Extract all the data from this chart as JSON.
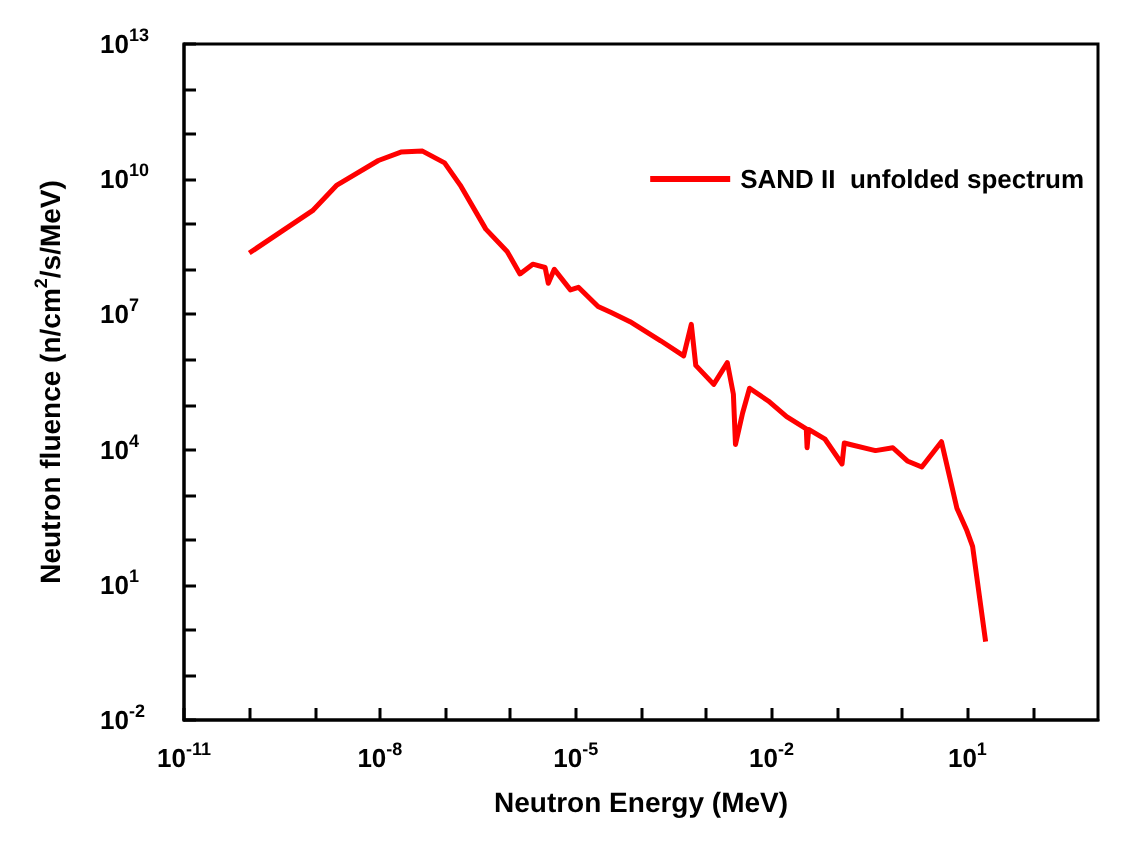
{
  "chart_data": {
    "type": "line",
    "xlabel": "Neutron Energy (MeV)",
    "ylabel": "Neutron fluence (n/cm$^{2}$/s/MeV)",
    "log": "xy",
    "grid": false,
    "legend": "top right",
    "marker": "none",
    "line_style": "solid",
    "xlim": [
      1e-11,
      1000.0
    ],
    "xticks": [
      {
        "value": 1e-11,
        "label": "10$^{-11}$"
      },
      {
        "value": 1e-10,
        "label": null
      },
      {
        "value": 1e-09,
        "label": null
      },
      {
        "value": 1e-08,
        "label": "10$^{-8}$"
      },
      {
        "value": 1e-07,
        "label": null
      },
      {
        "value": 1e-06,
        "label": null
      },
      {
        "value": 1e-05,
        "label": "10$^{-5}$"
      },
      {
        "value": 0.0001,
        "label": null
      },
      {
        "value": 0.001,
        "label": null
      },
      {
        "value": 0.01,
        "label": "10$^{-2}$"
      },
      {
        "value": 0.1,
        "label": null
      },
      {
        "value": 1,
        "label": null
      },
      {
        "value": 10,
        "label": "10$^{1}$"
      },
      {
        "value": 100,
        "label": null
      }
    ],
    "ylim": [
      0.01,
      10000000000000.0
    ],
    "yticks": [
      {
        "value": 0.01,
        "label": "10$^{-2}$"
      },
      {
        "value": 0.1,
        "label": null
      },
      {
        "value": 1,
        "label": null
      },
      {
        "value": 10,
        "label": "10$^{1}$"
      },
      {
        "value": 100,
        "label": null
      },
      {
        "value": 1000.0,
        "label": null
      },
      {
        "value": 10000.0,
        "label": "10$^{4}$"
      },
      {
        "value": 100000.0,
        "label": null
      },
      {
        "value": 1000000.0,
        "label": null
      },
      {
        "value": 10000000.0,
        "label": "10$^{7}$"
      },
      {
        "value": 100000000.0,
        "label": null
      },
      {
        "value": 1000000000.0,
        "label": null
      },
      {
        "value": 10000000000.0,
        "label": "10$^{10}$"
      },
      {
        "value": 100000000000.0,
        "label": null
      },
      {
        "value": 1000000000000.0,
        "label": null
      },
      {
        "value": 10000000000000.0,
        "label": "10$^{13}$"
      }
    ],
    "series": [
      {
        "name": "SAND II  unfolded spectrum",
        "color": "#ff0000",
        "x": [
          1e-10,
          9.3e-10,
          2.2e-09,
          9.5e-09,
          2.1e-08,
          4.5e-08,
          9.8e-08,
          1.7e-07,
          4.2e-07,
          8.9e-07,
          1.4e-06,
          2.2e-06,
          3.4e-06,
          3.8e-06,
          4.7e-06,
          8.3e-06,
          1.1e-05,
          2.2e-05,
          3.5e-05,
          6.8e-05,
          0.0002,
          0.00045,
          0.00059,
          0.00069,
          0.0013,
          0.0021,
          0.0026,
          0.0028,
          0.0036,
          0.0046,
          0.0089,
          0.017,
          0.034,
          0.035,
          0.037,
          0.066,
          0.12,
          0.13,
          0.16,
          0.39,
          0.72,
          1.2,
          2.0,
          4.0,
          6.9,
          9.8,
          12,
          19
        ],
        "values": [
          230000000.0,
          2000000000.0,
          7400000000.0,
          26000000000.0,
          40000000000.0,
          42000000000.0,
          23000000000.0,
          7400000000.0,
          780000000.0,
          250000000.0,
          79000000.0,
          130000000.0,
          110000000.0,
          49000000.0,
          100000000.0,
          35000000.0,
          40000000.0,
          15000000.0,
          11000000.0,
          6900000.0,
          2600000.0,
          1200000.0,
          6000000.0,
          740000.0,
          280000.0,
          850000.0,
          170000.0,
          13000.0,
          65000.0,
          230000.0,
          120000.0,
          54000.0,
          29000.0,
          11000.0,
          28000.0,
          17000.0,
          4800.0,
          14000.0,
          13000.0,
          9500.0,
          11000.0,
          5600.0,
          4100.0,
          15000.0,
          500.0,
          160.0,
          71,
          0.55
        ]
      }
    ]
  }
}
